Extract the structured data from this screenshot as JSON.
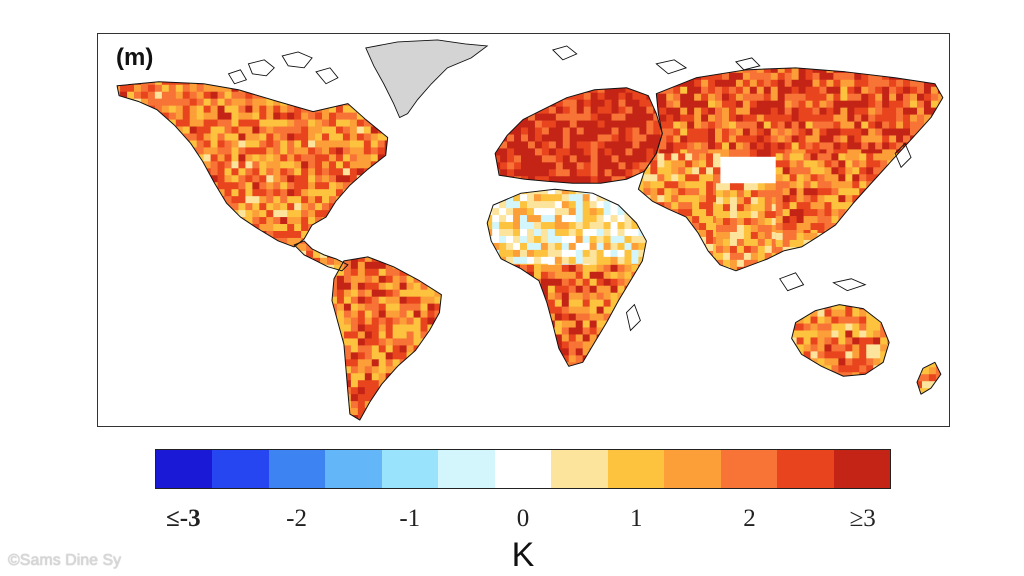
{
  "figure": {
    "panel_label": "(m)",
    "unit_label": "K",
    "watermark": "©Sams Dine Sy"
  },
  "colorbar": {
    "colors": [
      "#1a1ad6",
      "#2546f0",
      "#3d84f2",
      "#63b6f7",
      "#9ae3fc",
      "#d3f6fc",
      "#ffffff",
      "#fde49c",
      "#fdc33f",
      "#fc9f38",
      "#f77336",
      "#e8451e",
      "#c42416"
    ],
    "ticks": [
      {
        "label": "≤-3",
        "value": -3,
        "bold": true
      },
      {
        "label": "-2",
        "value": -2,
        "bold": false
      },
      {
        "label": "-1",
        "value": -1,
        "bold": false
      },
      {
        "label": "0",
        "value": 0,
        "bold": false
      },
      {
        "label": "1",
        "value": 1,
        "bold": false
      },
      {
        "label": "2",
        "value": 2,
        "bold": false
      },
      {
        "label": "≥3",
        "value": 3,
        "bold": false
      }
    ],
    "range": [
      -3.25,
      3.25
    ]
  },
  "map": {
    "ocean_color": "#ffffff",
    "greenland_color": "#d4d4d4",
    "coastline_color": "#111111",
    "regions": [
      {
        "name": "north-america",
        "anomaly": 1.8
      },
      {
        "name": "central-america",
        "anomaly": 1.5
      },
      {
        "name": "south-america",
        "anomaly": 1.9
      },
      {
        "name": "europe",
        "anomaly": 2.9
      },
      {
        "name": "north-africa-sahara",
        "anomaly": 0.5
      },
      {
        "name": "southern-africa",
        "anomaly": 2.0
      },
      {
        "name": "russia-central-asia",
        "anomaly": 2.3
      },
      {
        "name": "middle-east",
        "anomaly": 1.6
      },
      {
        "name": "india",
        "anomaly": 1.4
      },
      {
        "name": "china-east-asia",
        "anomaly": 1.9
      },
      {
        "name": "southeast-asia",
        "anomaly": 1.2
      },
      {
        "name": "australia",
        "anomaly": 1.7
      },
      {
        "name": "new-zealand",
        "anomaly": 1.5
      },
      {
        "name": "greenland",
        "anomaly": null
      }
    ]
  }
}
